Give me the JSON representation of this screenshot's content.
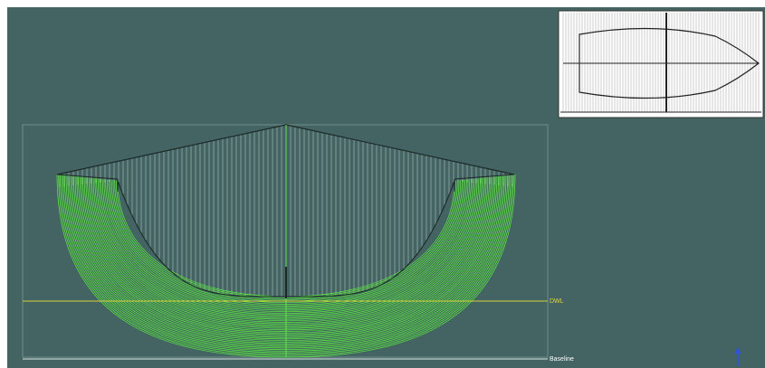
{
  "labels": {
    "dwl": "DWL",
    "baseline": "Baseline"
  }
}
